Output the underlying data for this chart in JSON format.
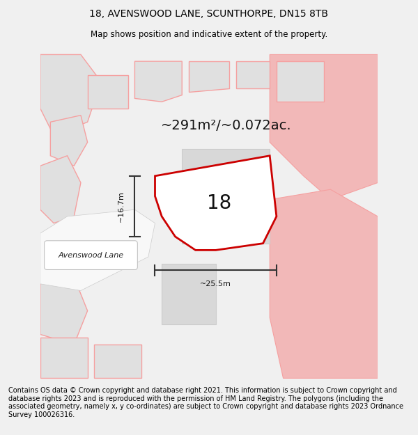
{
  "title_line1": "18, AVENSWOOD LANE, SCUNTHORPE, DN15 8TB",
  "title_line2": "Map shows position and indicative extent of the property.",
  "footer_text": "Contains OS data © Crown copyright and database right 2021. This information is subject to Crown copyright and database rights 2023 and is reproduced with the permission of HM Land Registry. The polygons (including the associated geometry, namely x, y co-ordinates) are subject to Crown copyright and database rights 2023 Ordnance Survey 100026316.",
  "area_label": "~291m²/~0.072ac.",
  "number_label": "18",
  "width_label": "~25.5m",
  "height_label": "~16.7m",
  "road_label": "Avenswood Lane",
  "bg_color": "#f0f0f0",
  "map_bg": "#ffffff",
  "highlight_fill": "#f2b8b8",
  "highlight_edge": "#cc0000",
  "neighbor_fill": "#e0e0e0",
  "neighbor_edge": "#f5a0a0",
  "dim_line_color": "#333333",
  "title_fontsize": 10,
  "subtitle_fontsize": 8.5,
  "footer_fontsize": 7,
  "area_fontsize": 14,
  "number_fontsize": 20,
  "label_fontsize": 8,
  "road_label_fontsize": 8
}
